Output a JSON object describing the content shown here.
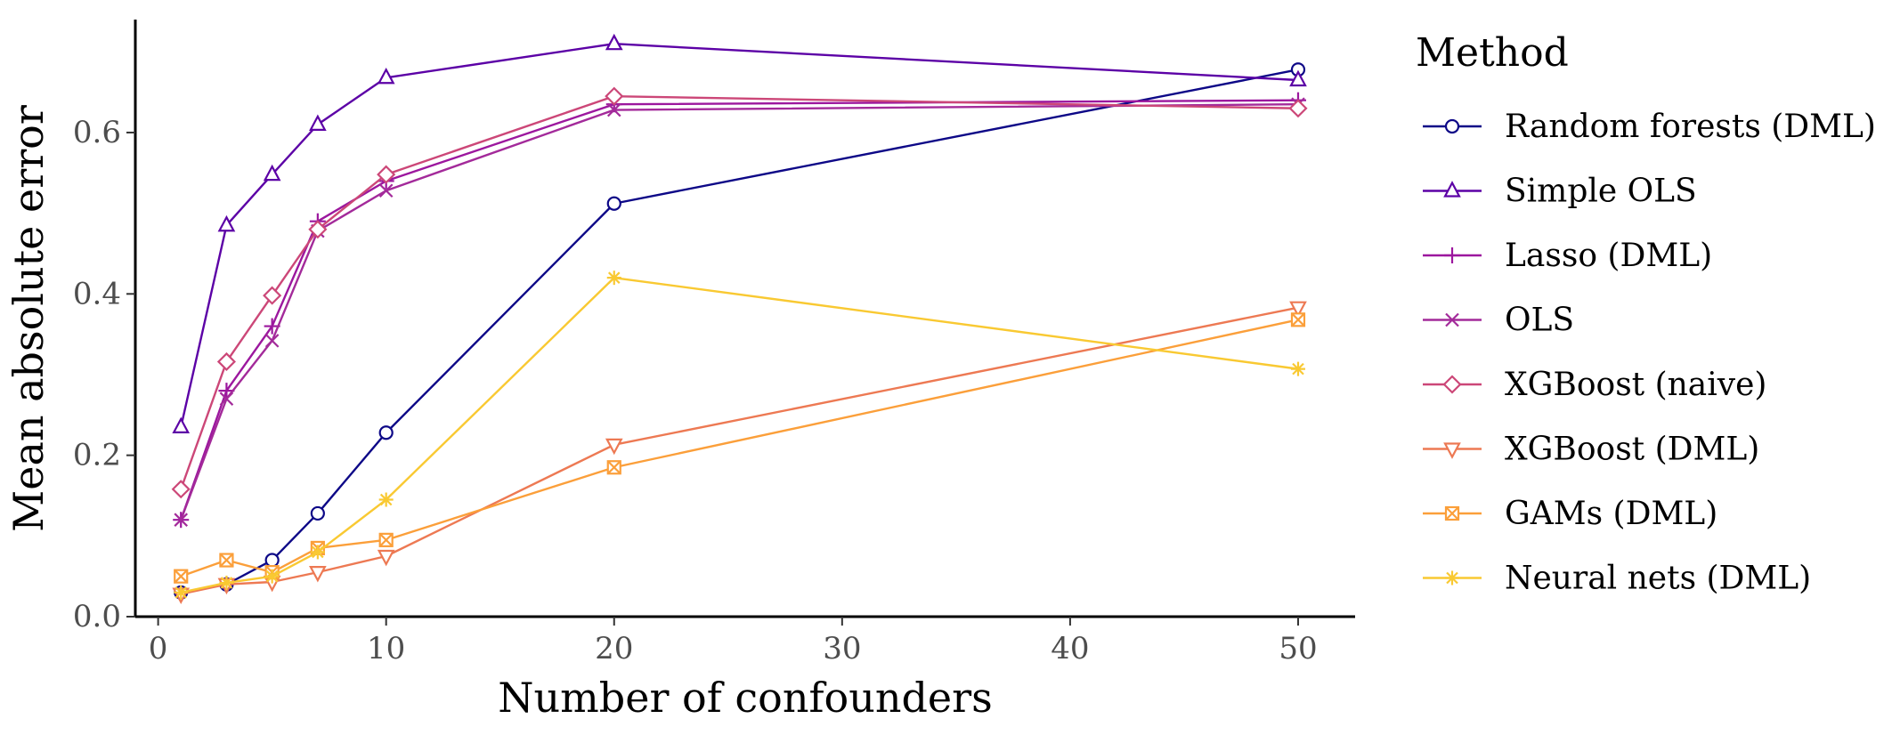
{
  "chart_data": {
    "type": "line",
    "xlabel": "Number of confounders",
    "ylabel": "Mean absolute error",
    "xlim": [
      -1,
      52.5
    ],
    "ylim": [
      0,
      0.74
    ],
    "xticks": [
      0,
      10,
      20,
      30,
      40,
      50
    ],
    "yticks": [
      0.0,
      0.2,
      0.4,
      0.6
    ],
    "ytick_labels": [
      "0.0",
      "0.2",
      "0.4",
      "0.6"
    ],
    "grid": false,
    "legend_title": "Method",
    "legend_position": "right",
    "x": [
      1,
      3,
      5,
      7,
      10,
      20,
      50
    ],
    "series": [
      {
        "name": "Random forests (DML)",
        "marker": "circle",
        "color": "#0d0887",
        "values": [
          0.03,
          0.04,
          0.07,
          0.128,
          0.228,
          0.512,
          0.678
        ]
      },
      {
        "name": "Simple OLS",
        "marker": "triangle",
        "color": "#5c01a6",
        "values": [
          0.235,
          0.485,
          0.548,
          0.61,
          0.668,
          0.71,
          0.665
        ]
      },
      {
        "name": "Lasso (DML)",
        "marker": "plus",
        "color": "#9c179e",
        "values": [
          0.12,
          0.28,
          0.36,
          0.49,
          0.54,
          0.635,
          0.64
        ]
      },
      {
        "name": "OLS",
        "marker": "cross",
        "color": "#a32a9a",
        "values": [
          0.12,
          0.27,
          0.342,
          0.478,
          0.528,
          0.628,
          0.635
        ]
      },
      {
        "name": "XGBoost (naive)",
        "marker": "diamond",
        "color": "#cc4778",
        "values": [
          0.158,
          0.316,
          0.398,
          0.48,
          0.548,
          0.645,
          0.63
        ]
      },
      {
        "name": "XGBoost (DML)",
        "marker": "triangle-down",
        "color": "#ed7953",
        "values": [
          0.028,
          0.04,
          0.043,
          0.055,
          0.075,
          0.213,
          0.383
        ]
      },
      {
        "name": "GAMs (DML)",
        "marker": "square-cross",
        "color": "#fb9f3a",
        "values": [
          0.05,
          0.07,
          0.055,
          0.085,
          0.095,
          0.185,
          0.368
        ]
      },
      {
        "name": "Neural nets (DML)",
        "marker": "asterisk",
        "color": "#f9c932",
        "values": [
          0.03,
          0.042,
          0.05,
          0.08,
          0.145,
          0.42,
          0.307
        ]
      }
    ]
  }
}
